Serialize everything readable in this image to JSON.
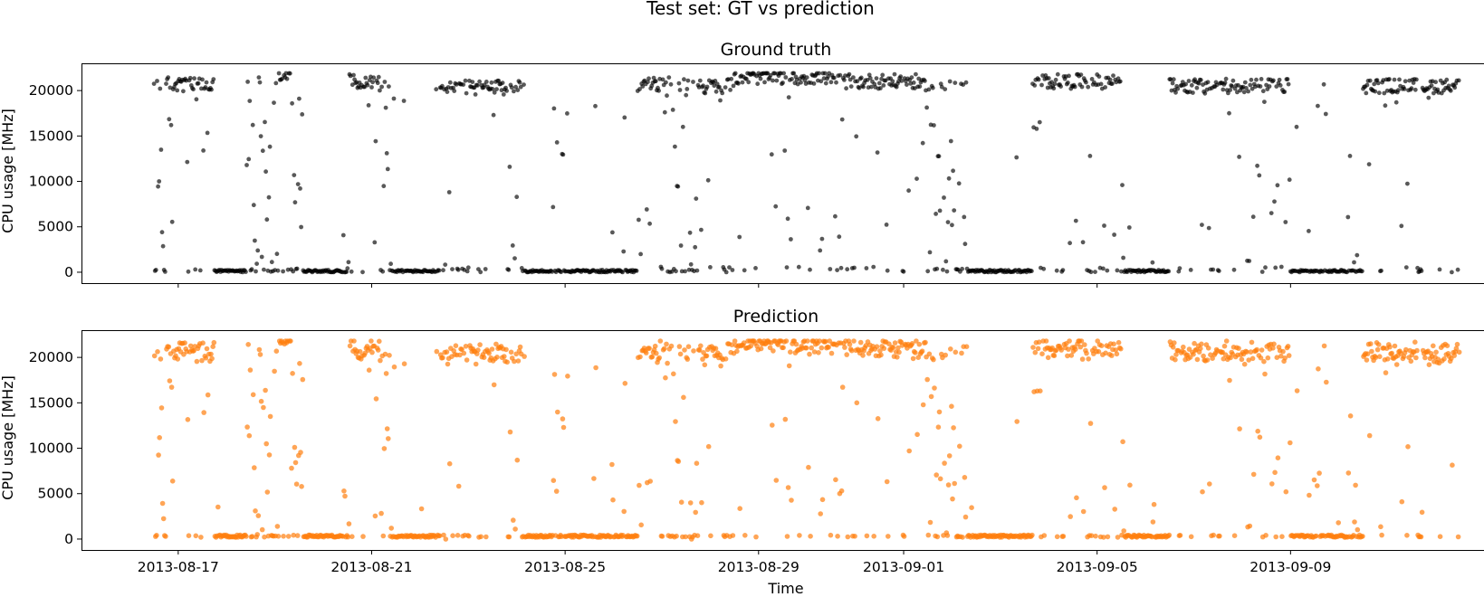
{
  "figure": {
    "title": "Test set: GT vs prediction"
  },
  "chart_data": [
    {
      "type": "scatter",
      "title": "Ground truth",
      "ylabel": "CPU usage [MHz]",
      "xlabel": "",
      "color": "#000000",
      "opacity": 0.65,
      "x_range": [
        "2013-08-15",
        "2013-09-13"
      ],
      "ylim": [
        -1200,
        23000
      ],
      "yticks": [
        0,
        5000,
        10000,
        15000,
        20000
      ],
      "xticks": [
        "2013-08-17",
        "2013-08-21",
        "2013-08-25",
        "2013-08-29",
        "2013-09-01",
        "2013-09-05",
        "2013-09-09"
      ],
      "xtick_labels_shown": false,
      "grid": false,
      "series": [
        {
          "description": "Approx. 30-min samples, 2013-08-16 to 2013-09-12; sustained high plateaus (~20,000–21,800 MHz), idle stretches near 0, and scattered transitional points",
          "segments": [
            {
              "start": "2013-08-16T12:00",
              "end": "2013-08-16T22:00",
              "mode": "mixed",
              "level": 2500
            },
            {
              "start": "2013-08-16T22:00",
              "end": "2013-08-17T18:00",
              "mode": "high",
              "level": 20600
            },
            {
              "start": "2013-08-17T18:00",
              "end": "2013-08-18T10:00",
              "mode": "low",
              "level": 0
            },
            {
              "start": "2013-08-18T10:00",
              "end": "2013-08-19T02:00",
              "mode": "mixed",
              "level": 10000
            },
            {
              "start": "2013-08-19T02:00",
              "end": "2013-08-19T08:00",
              "mode": "high",
              "level": 21500
            },
            {
              "start": "2013-08-19T08:00",
              "end": "2013-08-19T14:00",
              "mode": "mixed",
              "level": 3000
            },
            {
              "start": "2013-08-19T14:00",
              "end": "2013-08-20T12:00",
              "mode": "low",
              "level": 0
            },
            {
              "start": "2013-08-20T12:00",
              "end": "2013-08-21T04:00",
              "mode": "high",
              "level": 21000
            },
            {
              "start": "2013-08-21T04:00",
              "end": "2013-08-21T10:00",
              "mode": "mixed",
              "level": 8000
            },
            {
              "start": "2013-08-21T10:00",
              "end": "2013-08-22T10:00",
              "mode": "low",
              "level": 0
            },
            {
              "start": "2013-08-22T10:00",
              "end": "2013-08-24T04:00",
              "mode": "high",
              "level": 20300
            },
            {
              "start": "2013-08-24T04:00",
              "end": "2013-08-26T12:00",
              "mode": "low",
              "level": 0
            },
            {
              "start": "2013-08-26T12:00",
              "end": "2013-08-27T02:00",
              "mode": "high",
              "level": 20700
            },
            {
              "start": "2013-08-27T02:00",
              "end": "2013-08-27T18:00",
              "mode": "mixed",
              "level": 5000
            },
            {
              "start": "2013-08-27T18:00",
              "end": "2013-08-28T12:00",
              "mode": "high",
              "level": 20500
            },
            {
              "start": "2013-08-28T12:00",
              "end": "2013-08-30T12:00",
              "mode": "high",
              "level": 21500
            },
            {
              "start": "2013-08-30T12:00",
              "end": "2013-09-01T08:00",
              "mode": "high",
              "level": 21000
            },
            {
              "start": "2013-09-01T08:00",
              "end": "2013-09-02T08:00",
              "mode": "mixed",
              "level": 8000
            },
            {
              "start": "2013-09-02T08:00",
              "end": "2013-09-03T16:00",
              "mode": "low",
              "level": 0
            },
            {
              "start": "2013-09-03T16:00",
              "end": "2013-09-05T12:00",
              "mode": "high",
              "level": 21000
            },
            {
              "start": "2013-09-05T12:00",
              "end": "2013-09-06T12:00",
              "mode": "low",
              "level": 0
            },
            {
              "start": "2013-09-06T12:00",
              "end": "2013-09-09T00:00",
              "mode": "high",
              "level": 20500
            },
            {
              "start": "2013-09-09T00:00",
              "end": "2013-09-10T12:00",
              "mode": "low",
              "level": 0
            },
            {
              "start": "2013-09-10T12:00",
              "end": "2013-09-12T12:00",
              "mode": "high",
              "level": 20500
            }
          ]
        }
      ]
    },
    {
      "type": "scatter",
      "title": "Prediction",
      "ylabel": "CPU usage [MHz]",
      "xlabel": "Time",
      "color": "#ff7f0e",
      "opacity": 0.7,
      "x_range": [
        "2013-08-15",
        "2013-09-13"
      ],
      "ylim": [
        -1200,
        23000
      ],
      "yticks": [
        0,
        5000,
        10000,
        15000,
        20000
      ],
      "xticks": [
        "2013-08-17",
        "2013-08-21",
        "2013-08-25",
        "2013-08-29",
        "2013-09-01",
        "2013-09-05",
        "2013-09-09"
      ],
      "xtick_labels_shown": true,
      "grid": false,
      "series": [
        {
          "description": "Model prediction tracking the ground truth: same plateaus around 20,000–21,500 MHz and idle periods near 200–300 MHz"
        }
      ]
    }
  ]
}
